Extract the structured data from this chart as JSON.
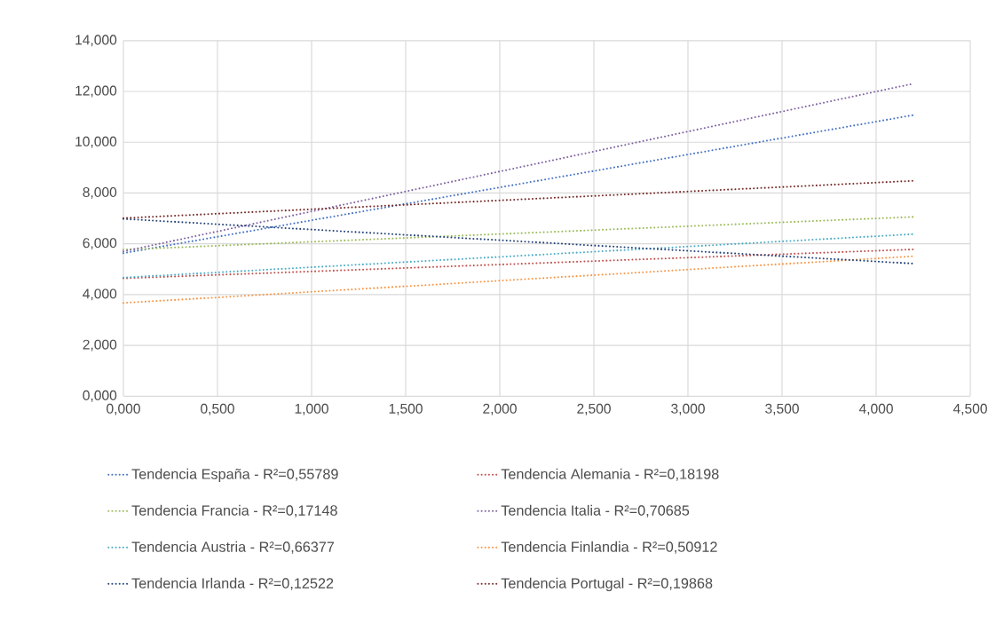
{
  "chart_data": {
    "type": "line",
    "line_style": "dotted",
    "marker": "none",
    "grid": true,
    "legend": "bottom",
    "xlim": [
      0,
      4.5
    ],
    "ylim": [
      0,
      14
    ],
    "x": [
      0,
      4.2
    ],
    "xticks": [
      {
        "value": 0,
        "label": "0,000"
      },
      {
        "value": 0.5,
        "label": "0,500"
      },
      {
        "value": 1,
        "label": "1,000"
      },
      {
        "value": 1.5,
        "label": "1,500"
      },
      {
        "value": 2,
        "label": "2,000"
      },
      {
        "value": 2.5,
        "label": "2,500"
      },
      {
        "value": 3,
        "label": "3,000"
      },
      {
        "value": 3.5,
        "label": "3,500"
      },
      {
        "value": 4,
        "label": "4,000"
      },
      {
        "value": 4.5,
        "label": "4,500"
      }
    ],
    "yticks": [
      {
        "value": 0,
        "label": "0,000"
      },
      {
        "value": 2,
        "label": "2,000"
      },
      {
        "value": 4,
        "label": "4,000"
      },
      {
        "value": 6,
        "label": "6,000"
      },
      {
        "value": 8,
        "label": "8,000"
      },
      {
        "value": 10,
        "label": "10,000"
      },
      {
        "value": 12,
        "label": "12,000"
      },
      {
        "value": 14,
        "label": "14,000"
      }
    ],
    "series": [
      {
        "name": "Tendencia España - R²=0,55789",
        "color": "#4472c4",
        "values": [
          5.63,
          11.07
        ]
      },
      {
        "name": "Tendencia Alemania - R²=0,18198",
        "color": "#c0504d",
        "values": [
          4.64,
          5.78
        ]
      },
      {
        "name": "Tendencia Francia - R²=0,17148",
        "color": "#9bbb59",
        "values": [
          5.77,
          7.06
        ]
      },
      {
        "name": "Tendencia Italia - R²=0,70685",
        "color": "#8064a2",
        "values": [
          5.7,
          12.31
        ]
      },
      {
        "name": "Tendencia Austria - R²=0,66377",
        "color": "#4bacc6",
        "values": [
          4.67,
          6.38
        ]
      },
      {
        "name": "Tendencia Finlandia - R²=0,50912",
        "color": "#f79646",
        "values": [
          3.67,
          5.51
        ]
      },
      {
        "name": "Tendencia Irlanda - R²=0,12522",
        "color": "#264478",
        "values": [
          6.98,
          5.22
        ]
      },
      {
        "name": "Tendencia Portugal - R²=0,19868",
        "color": "#772c2a",
        "values": [
          7.01,
          8.48
        ]
      }
    ]
  }
}
